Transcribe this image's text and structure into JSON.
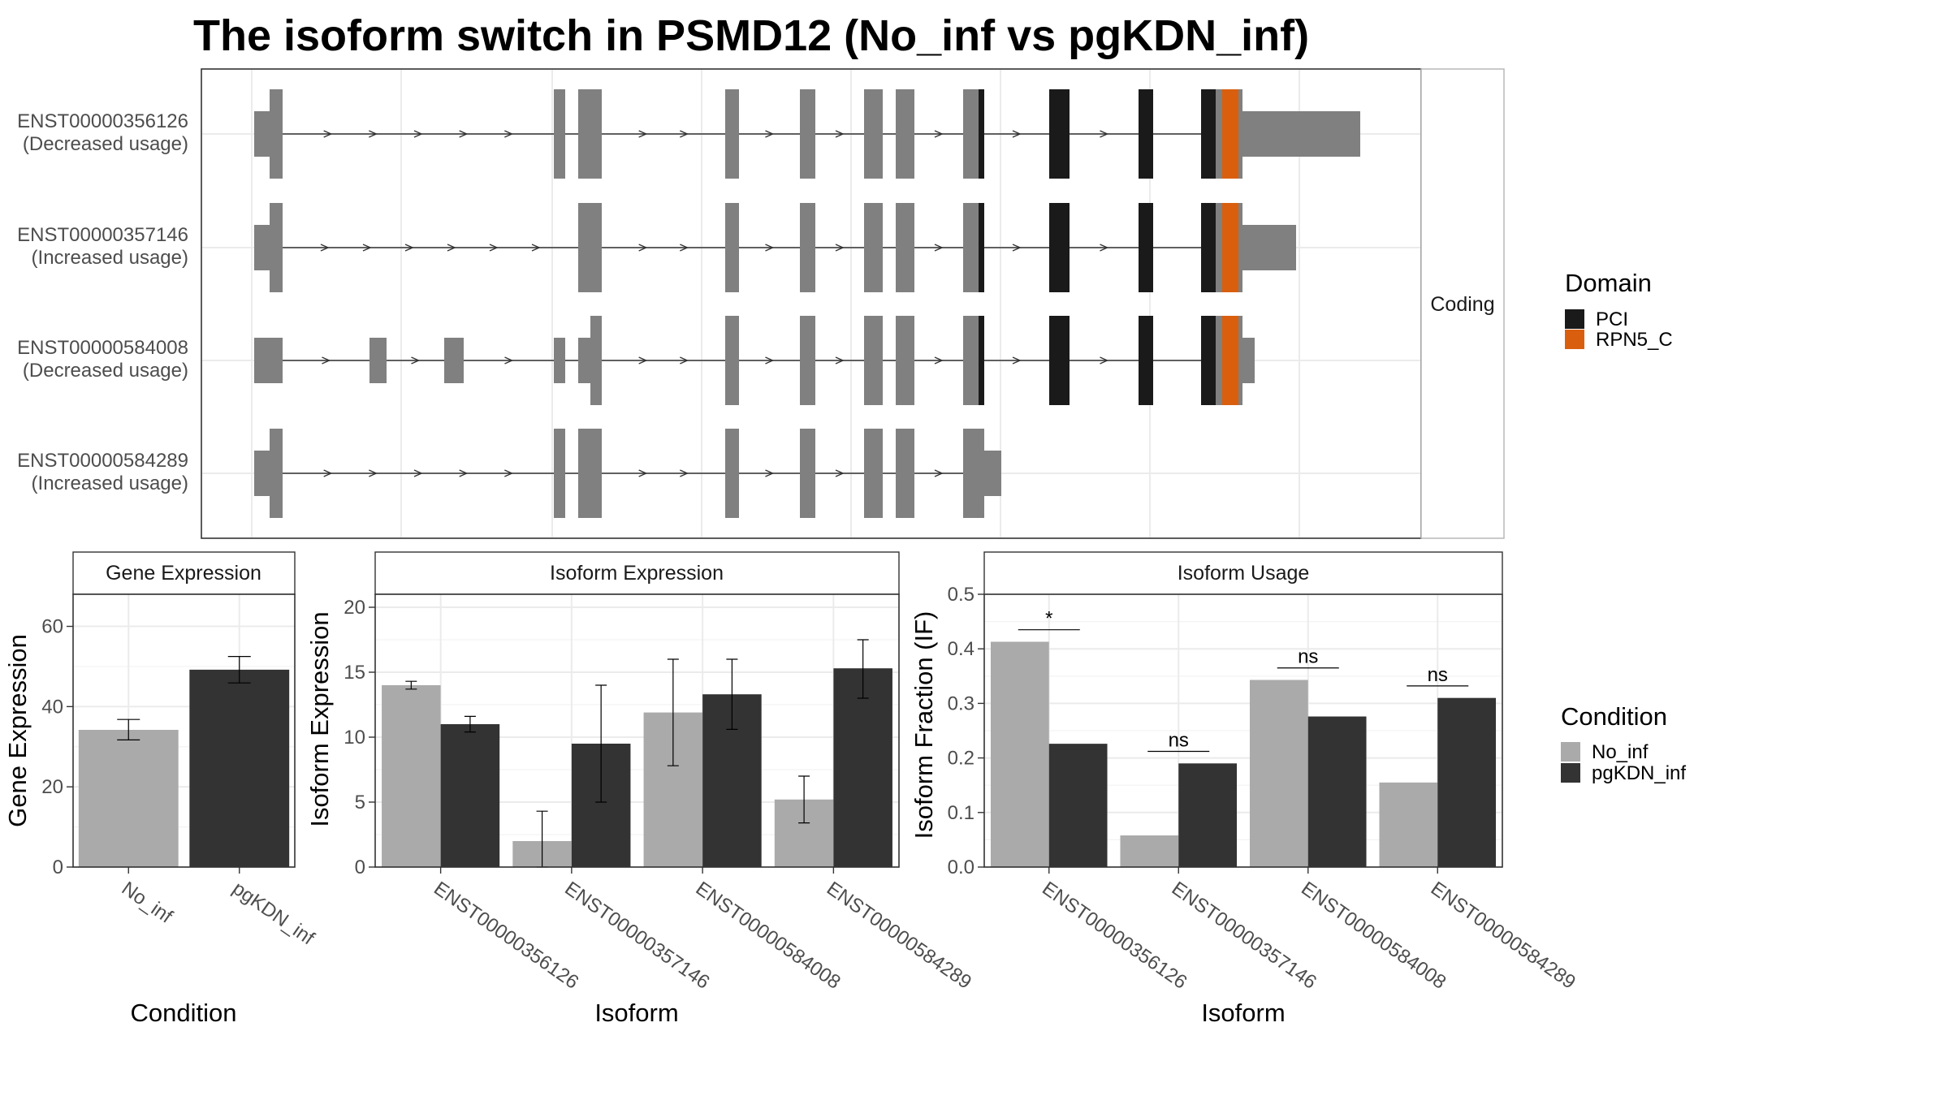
{
  "title": "The isoform switch in PSMD12 (No_inf vs pgKDN_inf)",
  "colors": {
    "exon": "#808080",
    "pci": "#1a1a1a",
    "rpn5": "#d95f0e",
    "no_inf": "#aaaaaa",
    "pgkdn_inf": "#333333",
    "grid": "#ebebeb",
    "panel_border": "#333333",
    "strip_border": "#b3b3b3"
  },
  "chart_data": [
    {
      "type": "diagram",
      "panel": "isoform-structure",
      "strip_label": "Coding",
      "transcripts": [
        {
          "id": "ENST00000356126",
          "note": "(Decreased usage)"
        },
        {
          "id": "ENST00000357146",
          "note": "(Increased usage)"
        },
        {
          "id": "ENST00000584008",
          "note": "(Decreased usage)"
        },
        {
          "id": "ENST00000584289",
          "note": "(Increased usage)"
        }
      ],
      "legend": {
        "title": "Domain",
        "items": [
          {
            "label": "PCI",
            "color": "#1a1a1a"
          },
          {
            "label": "RPN5_C",
            "color": "#d95f0e"
          }
        ]
      }
    },
    {
      "type": "bar",
      "panel": "gene-expression",
      "strip_label": "Gene Expression",
      "xlabel": "Condition",
      "ylabel": "Gene Expression",
      "ylim": [
        0,
        68
      ],
      "yticks": [
        0,
        20,
        40,
        60
      ],
      "categories": [
        "No_inf",
        "pgKDN_inf"
      ],
      "values": [
        34.2,
        49.2
      ],
      "errors": [
        [
          31.7,
          36.8
        ],
        [
          45.9,
          52.5
        ]
      ]
    },
    {
      "type": "bar",
      "panel": "isoform-expression",
      "strip_label": "Isoform Expression",
      "xlabel": "Isoform",
      "ylabel": "Isoform Expression",
      "ylim": [
        0,
        21
      ],
      "yticks": [
        0,
        5,
        10,
        15,
        20
      ],
      "categories": [
        "ENST00000356126",
        "ENST00000357146",
        "ENST00000584008",
        "ENST00000584289"
      ],
      "series": [
        {
          "values": [
            14.0,
            2.0,
            11.9,
            5.2
          ],
          "errors": [
            [
              13.7,
              14.3
            ],
            [
              0.0,
              4.3
            ],
            [
              7.8,
              16.0
            ],
            [
              3.4,
              7.0
            ]
          ]
        },
        {
          "values": [
            11.0,
            9.5,
            13.3,
            15.3
          ],
          "errors": [
            [
              10.4,
              11.6
            ],
            [
              5.0,
              14.0
            ],
            [
              10.6,
              16.0
            ],
            [
              13.0,
              17.5
            ]
          ]
        }
      ]
    },
    {
      "type": "bar",
      "panel": "isoform-usage",
      "strip_label": "Isoform Usage",
      "xlabel": "Isoform",
      "ylabel": "Isoform Fraction (IF)",
      "ylim": [
        0,
        0.5
      ],
      "yticks": [
        "0.0",
        "0.1",
        "0.2",
        "0.3",
        "0.4",
        "0.5"
      ],
      "categories": [
        "ENST00000356126",
        "ENST00000357146",
        "ENST00000584008",
        "ENST00000584289"
      ],
      "series": [
        {
          "values": [
            0.413,
            0.058,
            0.343,
            0.155
          ]
        },
        {
          "values": [
            0.226,
            0.19,
            0.276,
            0.31
          ]
        }
      ],
      "significance": [
        "*",
        "ns",
        "ns",
        "ns"
      ],
      "significance_y": [
        0.435,
        0.212,
        0.365,
        0.332
      ]
    }
  ],
  "condition_legend": {
    "title": "Condition",
    "items": [
      {
        "label": "No_inf",
        "color": "#aaaaaa"
      },
      {
        "label": "pgKDN_inf",
        "color": "#333333"
      }
    ]
  }
}
